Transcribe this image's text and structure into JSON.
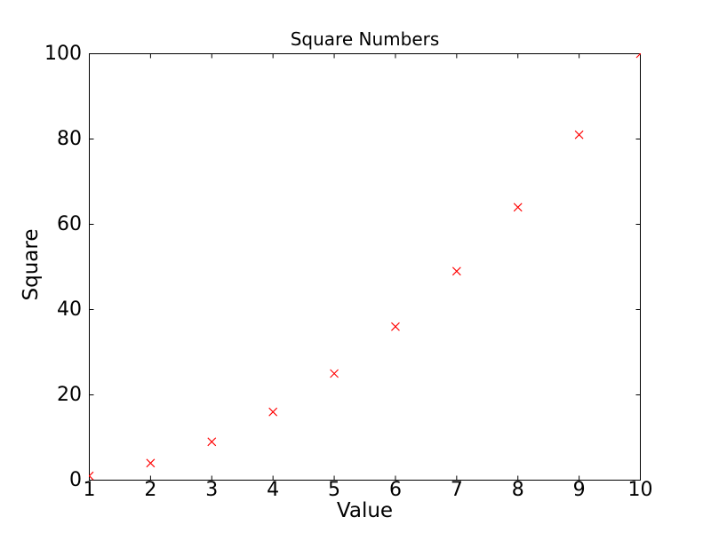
{
  "chart_data": {
    "type": "scatter",
    "title": "Square Numbers",
    "xlabel": "Value",
    "ylabel": "Square",
    "x": [
      1,
      2,
      3,
      4,
      5,
      6,
      7,
      8,
      9,
      10
    ],
    "y": [
      1,
      4,
      9,
      16,
      25,
      36,
      49,
      64,
      81,
      100
    ],
    "xlim": [
      1,
      10
    ],
    "ylim": [
      0,
      100
    ],
    "xticks": [
      1,
      2,
      3,
      4,
      5,
      6,
      7,
      8,
      9,
      10
    ],
    "xtick_labels": [
      "1",
      "2",
      "3",
      "4",
      "5",
      "6",
      "7",
      "8",
      "9",
      "10"
    ],
    "yticks": [
      0,
      20,
      40,
      60,
      80,
      100
    ],
    "ytick_labels": [
      "0",
      "20",
      "40",
      "60",
      "80",
      "100"
    ],
    "marker": "x",
    "marker_color": "#ff0000",
    "marker_size": 9,
    "axis_color": "#000000",
    "background_color": "#ffffff",
    "grid": false,
    "legend_position": "none",
    "tick_direction": "in"
  }
}
